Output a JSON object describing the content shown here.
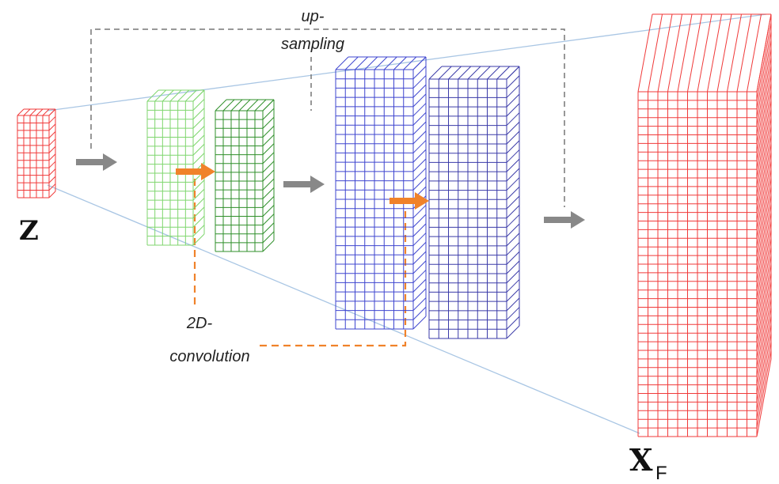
{
  "labels": {
    "upsampling_line1": "up-",
    "upsampling_line2": "sampling",
    "conv_line1": "2D-",
    "conv_line2": "convolution",
    "input_var": "Z",
    "output_var": "X",
    "output_sub": "F"
  },
  "colors": {
    "input_grid": "#f03a3a",
    "light_green": "#7fd66e",
    "dark_green": "#2f8f2a",
    "blue": "#3e45cf",
    "indigo": "#3a3aa8",
    "output_grid": "#f03a3a",
    "flow_arrow": "#888888",
    "conv_arrow": "#f0822a",
    "upsample_line": "#777777",
    "conv_line": "#f0822a",
    "frustum_line": "#a9c6e4"
  },
  "icons": {
    "flow": "gray-right-arrow",
    "conv": "orange-right-arrow"
  }
}
